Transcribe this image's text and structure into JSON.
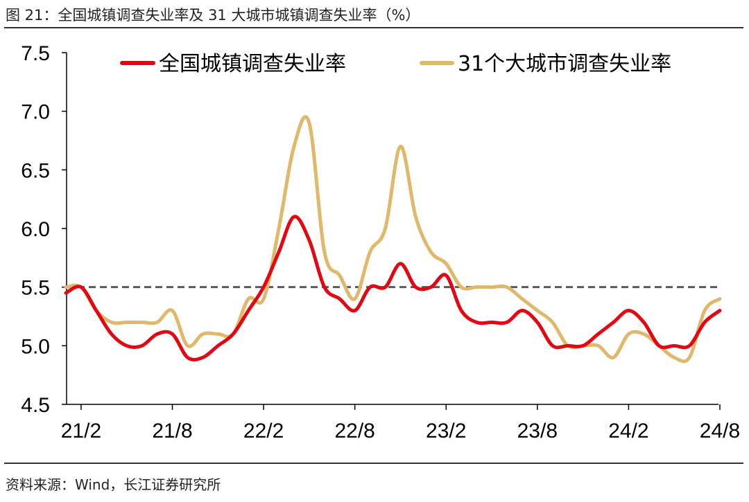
{
  "figure": {
    "title": "图  21：全国城镇调查失业率及 31 大城市城镇调查失业率（%）",
    "source": "资料来源：Wind，长江证券研究所"
  },
  "chart_data": {
    "type": "line",
    "ylim": [
      4.5,
      7.5
    ],
    "y_ticks": [
      "4.5",
      "5.0",
      "5.5",
      "6.0",
      "6.5",
      "7.0",
      "7.5"
    ],
    "x_tick_labels": [
      "21/2",
      "21/8",
      "22/2",
      "22/8",
      "23/2",
      "23/8",
      "24/2",
      "24/8"
    ],
    "x": [
      "21/1",
      "21/2",
      "21/3",
      "21/4",
      "21/5",
      "21/6",
      "21/7",
      "21/8",
      "21/9",
      "21/10",
      "21/11",
      "21/12",
      "22/1",
      "22/2",
      "22/3",
      "22/4",
      "22/5",
      "22/6",
      "22/7",
      "22/8",
      "22/9",
      "22/10",
      "22/11",
      "22/12",
      "23/1",
      "23/2",
      "23/3",
      "23/4",
      "23/5",
      "23/6",
      "23/7",
      "23/8",
      "23/9",
      "23/10",
      "23/11",
      "23/12",
      "24/1",
      "24/2",
      "24/3",
      "24/4",
      "24/5",
      "24/6",
      "24/7",
      "24/8"
    ],
    "reference_line": {
      "y": 5.5,
      "style": "dashed",
      "color": "#595959"
    },
    "legend_position": "top",
    "series": [
      {
        "name": "全国城镇调查失业率",
        "color": "#e30613",
        "values": [
          5.45,
          5.5,
          5.3,
          5.1,
          5.0,
          5.0,
          5.1,
          5.1,
          4.9,
          4.9,
          5.0,
          5.1,
          5.3,
          5.5,
          5.8,
          6.1,
          5.9,
          5.5,
          5.4,
          5.3,
          5.5,
          5.5,
          5.7,
          5.5,
          5.5,
          5.6,
          5.3,
          5.2,
          5.2,
          5.2,
          5.3,
          5.2,
          5.0,
          5.0,
          5.0,
          5.1,
          5.2,
          5.3,
          5.2,
          5.0,
          5.0,
          5.0,
          5.2,
          5.3
        ]
      },
      {
        "name": "31个大城市调查失业率",
        "color": "#e0b86a",
        "values": [
          5.5,
          5.5,
          5.3,
          5.2,
          5.2,
          5.2,
          5.2,
          5.3,
          5.0,
          5.1,
          5.1,
          5.1,
          5.4,
          5.4,
          6.0,
          6.7,
          6.9,
          5.8,
          5.6,
          5.4,
          5.8,
          6.0,
          6.7,
          6.1,
          5.8,
          5.7,
          5.5,
          5.5,
          5.5,
          5.5,
          5.4,
          5.3,
          5.2,
          5.0,
          5.0,
          5.0,
          4.9,
          5.1,
          5.1,
          5.0,
          4.9,
          4.9,
          5.3,
          5.4
        ]
      }
    ]
  }
}
